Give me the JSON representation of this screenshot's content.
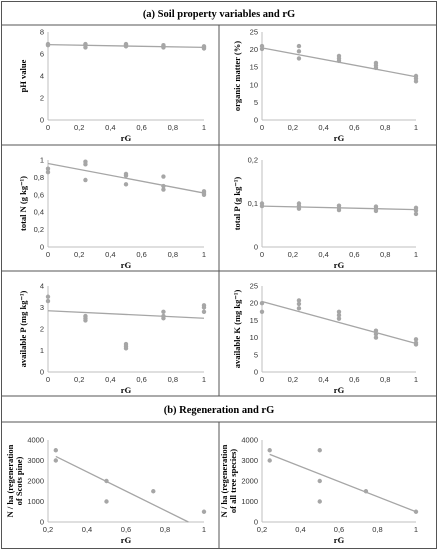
{
  "section_a_title": "(a)  Soil property variables and rG",
  "section_b_title": "(b) Regeneration and rG",
  "colors": {
    "point": "#a6a6a6",
    "trend": "#a6a6a6",
    "axis": "#bfbfbf",
    "border": "#555555"
  },
  "chart_data": [
    {
      "type": "scatter",
      "xlabel": "rG",
      "ylabel": "pH value",
      "xlim": [
        0,
        1
      ],
      "ylim": [
        0,
        8
      ],
      "xticks": [
        "0",
        "0,2",
        "0,4",
        "0,6",
        "0,8",
        "1"
      ],
      "xtick_values": [
        0,
        0.2,
        0.4,
        0.6,
        0.8,
        1
      ],
      "yticks": [
        "0",
        "2",
        "4",
        "6",
        "8"
      ],
      "ytick_values": [
        0,
        2,
        4,
        6,
        8
      ],
      "points": [
        [
          0,
          6.8
        ],
        [
          0,
          6.9
        ],
        [
          0.24,
          6.6
        ],
        [
          0.24,
          6.8
        ],
        [
          0.24,
          6.9
        ],
        [
          0.5,
          6.7
        ],
        [
          0.5,
          6.8
        ],
        [
          0.5,
          6.9
        ],
        [
          0.74,
          6.6
        ],
        [
          0.74,
          6.7
        ],
        [
          0.74,
          6.8
        ],
        [
          1,
          6.5
        ],
        [
          1,
          6.6
        ],
        [
          1,
          6.7
        ]
      ],
      "trend": [
        [
          0,
          6.85
        ],
        [
          1,
          6.6
        ]
      ]
    },
    {
      "type": "scatter",
      "xlabel": "rG",
      "ylabel": "organic matter (%)",
      "xlim": [
        0,
        1
      ],
      "ylim": [
        0,
        25
      ],
      "xticks": [
        "0",
        "0,2",
        "0,4",
        "0,6",
        "0,8",
        "1"
      ],
      "xtick_values": [
        0,
        0.2,
        0.4,
        0.6,
        0.8,
        1
      ],
      "yticks": [
        "0",
        "5",
        "10",
        "15",
        "20",
        "25"
      ],
      "ytick_values": [
        0,
        5,
        10,
        15,
        20,
        25
      ],
      "points": [
        [
          0,
          20.2
        ],
        [
          0,
          21.0
        ],
        [
          0.24,
          17.5
        ],
        [
          0.24,
          19.5
        ],
        [
          0.24,
          21.0
        ],
        [
          0.5,
          16.8
        ],
        [
          0.5,
          17.5
        ],
        [
          0.5,
          18.2
        ],
        [
          0.74,
          14.8
        ],
        [
          0.74,
          15.5
        ],
        [
          0.74,
          16.2
        ],
        [
          1,
          11.0
        ],
        [
          1,
          11.8
        ],
        [
          1,
          12.5
        ]
      ],
      "trend": [
        [
          0,
          20.5
        ],
        [
          1,
          12.3
        ]
      ]
    },
    {
      "type": "scatter",
      "xlabel": "rG",
      "ylabel": "total N (g kg⁻¹)",
      "xlim": [
        0,
        1
      ],
      "ylim": [
        0,
        1
      ],
      "xticks": [
        "0",
        "0,2",
        "0,4",
        "0,6",
        "0,8",
        "1"
      ],
      "xtick_values": [
        0,
        0.2,
        0.4,
        0.6,
        0.8,
        1
      ],
      "yticks": [
        "0",
        "0,2",
        "0,4",
        "0,6",
        "0,8",
        "1"
      ],
      "ytick_values": [
        0,
        0.2,
        0.4,
        0.6,
        0.8,
        1
      ],
      "points": [
        [
          0,
          0.86
        ],
        [
          0,
          0.9
        ],
        [
          0.24,
          0.77
        ],
        [
          0.24,
          0.95
        ],
        [
          0.24,
          0.98
        ],
        [
          0.5,
          0.72
        ],
        [
          0.5,
          0.82
        ],
        [
          0.5,
          0.84
        ],
        [
          0.74,
          0.66
        ],
        [
          0.74,
          0.7
        ],
        [
          0.74,
          0.81
        ],
        [
          1,
          0.6
        ],
        [
          1,
          0.62
        ],
        [
          1,
          0.64
        ]
      ],
      "trend": [
        [
          0,
          0.96
        ],
        [
          1,
          0.62
        ]
      ]
    },
    {
      "type": "scatter",
      "xlabel": "rG",
      "ylabel": "total P (g kg⁻¹)",
      "xlim": [
        0,
        1
      ],
      "ylim": [
        0,
        0.2
      ],
      "xticks": [
        "0",
        "0,2",
        "0,4",
        "0,6",
        "0,8",
        "1"
      ],
      "xtick_values": [
        0,
        0.2,
        0.4,
        0.6,
        0.8,
        1
      ],
      "yticks": [
        "0",
        "0,1",
        "0,2"
      ],
      "ytick_values": [
        0,
        0.1,
        0.2
      ],
      "points": [
        [
          0,
          0.094
        ],
        [
          0,
          0.1
        ],
        [
          0.24,
          0.088
        ],
        [
          0.24,
          0.094
        ],
        [
          0.24,
          0.1
        ],
        [
          0.5,
          0.085
        ],
        [
          0.5,
          0.09
        ],
        [
          0.5,
          0.095
        ],
        [
          0.74,
          0.083
        ],
        [
          0.74,
          0.088
        ],
        [
          0.74,
          0.093
        ],
        [
          1,
          0.076
        ],
        [
          1,
          0.084
        ],
        [
          1,
          0.09
        ]
      ],
      "trend": [
        [
          0,
          0.094
        ],
        [
          1,
          0.086
        ]
      ]
    },
    {
      "type": "scatter",
      "xlabel": "rG",
      "ylabel": "available P (mg kg⁻¹)",
      "xlim": [
        0,
        1
      ],
      "ylim": [
        0,
        4
      ],
      "xticks": [
        "0",
        "0,2",
        "0,4",
        "0,6",
        "0,8",
        "1"
      ],
      "xtick_values": [
        0,
        0.2,
        0.4,
        0.6,
        0.8,
        1
      ],
      "yticks": [
        "0",
        "1",
        "2",
        "3",
        "4"
      ],
      "ytick_values": [
        0,
        1,
        2,
        3,
        4
      ],
      "points": [
        [
          0,
          3.3
        ],
        [
          0,
          3.5
        ],
        [
          0.24,
          2.4
        ],
        [
          0.24,
          2.5
        ],
        [
          0.24,
          2.6
        ],
        [
          0.5,
          1.1
        ],
        [
          0.5,
          1.2
        ],
        [
          0.5,
          1.3
        ],
        [
          0.74,
          2.5
        ],
        [
          0.74,
          2.6
        ],
        [
          0.74,
          2.8
        ],
        [
          1,
          2.8
        ],
        [
          1,
          3.0
        ],
        [
          1,
          3.1
        ]
      ],
      "trend": [
        [
          0,
          2.85
        ],
        [
          1,
          2.5
        ]
      ]
    },
    {
      "type": "scatter",
      "xlabel": "rG",
      "ylabel": "available K (mg kg⁻¹)",
      "xlim": [
        0,
        1
      ],
      "ylim": [
        0,
        25
      ],
      "xticks": [
        "0",
        "0,2",
        "0,4",
        "0,6",
        "0,8",
        "1"
      ],
      "xtick_values": [
        0,
        0.2,
        0.4,
        0.6,
        0.8,
        1
      ],
      "yticks": [
        "0",
        "5",
        "10",
        "15",
        "20",
        "25"
      ],
      "ytick_values": [
        0,
        5,
        10,
        15,
        20,
        25
      ],
      "points": [
        [
          0,
          17.5
        ],
        [
          0,
          20.0
        ],
        [
          0.24,
          18.5
        ],
        [
          0.24,
          19.8
        ],
        [
          0.24,
          20.8
        ],
        [
          0.5,
          15.5
        ],
        [
          0.5,
          16.5
        ],
        [
          0.5,
          17.5
        ],
        [
          0.74,
          10.0
        ],
        [
          0.74,
          11.0
        ],
        [
          0.74,
          12.0
        ],
        [
          1,
          8.0
        ],
        [
          1,
          8.5
        ],
        [
          1,
          9.5
        ]
      ],
      "trend": [
        [
          0,
          20.5
        ],
        [
          1,
          8.3
        ]
      ]
    },
    {
      "type": "scatter",
      "xlabel": "rG",
      "ylabel": "N / ha (regeneration of Scots pine)",
      "xlim": [
        0.2,
        1
      ],
      "ylim": [
        0,
        4000
      ],
      "xticks": [
        "0,2",
        "0,4",
        "0,6",
        "0,8",
        "1"
      ],
      "xtick_values": [
        0.2,
        0.4,
        0.6,
        0.8,
        1
      ],
      "yticks": [
        "0",
        "1000",
        "2000",
        "3000",
        "4000"
      ],
      "ytick_values": [
        0,
        1000,
        2000,
        3000,
        4000
      ],
      "points": [
        [
          0.24,
          3500
        ],
        [
          0.24,
          3000
        ],
        [
          0.5,
          2000
        ],
        [
          0.5,
          1000
        ],
        [
          0.74,
          1500
        ],
        [
          1,
          500
        ]
      ],
      "trend": [
        [
          0.24,
          3200
        ],
        [
          0.92,
          0
        ]
      ]
    },
    {
      "type": "scatter",
      "xlabel": "rG",
      "ylabel": "N / ha (regeneration of all tree species)",
      "xlim": [
        0.2,
        1
      ],
      "ylim": [
        0,
        4000
      ],
      "xticks": [
        "0,2",
        "0,4",
        "0,6",
        "0,8",
        "1"
      ],
      "xtick_values": [
        0.2,
        0.4,
        0.6,
        0.8,
        1
      ],
      "yticks": [
        "0",
        "1000",
        "2000",
        "3000",
        "4000"
      ],
      "ytick_values": [
        0,
        1000,
        2000,
        3000,
        4000
      ],
      "points": [
        [
          0.24,
          3500
        ],
        [
          0.24,
          3000
        ],
        [
          0.5,
          3500
        ],
        [
          0.5,
          2000
        ],
        [
          0.5,
          1000
        ],
        [
          0.74,
          1500
        ],
        [
          1,
          500
        ]
      ],
      "trend": [
        [
          0.24,
          3300
        ],
        [
          1,
          500
        ]
      ]
    }
  ]
}
